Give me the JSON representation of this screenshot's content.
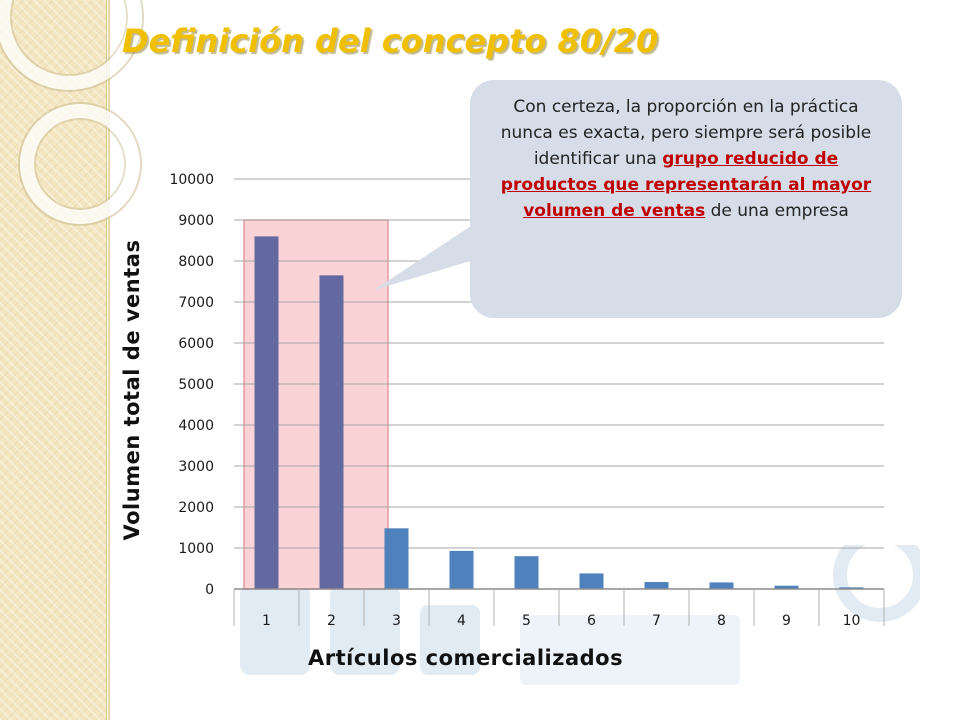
{
  "slide": {
    "title": "Definición del concepto 80/20"
  },
  "callout": {
    "text_before": "Con certeza, la proporción en la práctica nunca es exacta, pero siempre será posible identificar una ",
    "text_emphasis": "grupo reducido de productos que representarán al mayor volumen de ventas",
    "text_after": " de una empresa"
  },
  "chart_data": {
    "type": "bar",
    "categories": [
      "1",
      "2",
      "3",
      "4",
      "5",
      "6",
      "7",
      "8",
      "9",
      "10"
    ],
    "values": [
      8600,
      7650,
      1480,
      930,
      800,
      380,
      170,
      160,
      80,
      40
    ],
    "xlabel": "Artículos comercializados",
    "ylabel": "Volumen total de ventas",
    "ylim": [
      0,
      10000
    ],
    "yticks": [
      "0",
      "1000",
      "2000",
      "3000",
      "4000",
      "5000",
      "6000",
      "7000",
      "8000",
      "9000",
      "10000"
    ],
    "grid": true,
    "highlight_categories": [
      "1",
      "2"
    ],
    "colors": {
      "highlight_bar": "#6468a0",
      "bar": "#4f81bd",
      "highlight_region": "#f9d3d6",
      "highlight_border": "#e69aa0",
      "title": "#f0c000",
      "emphasis": "#c00000",
      "callout_bg": "#d6dde9"
    }
  }
}
